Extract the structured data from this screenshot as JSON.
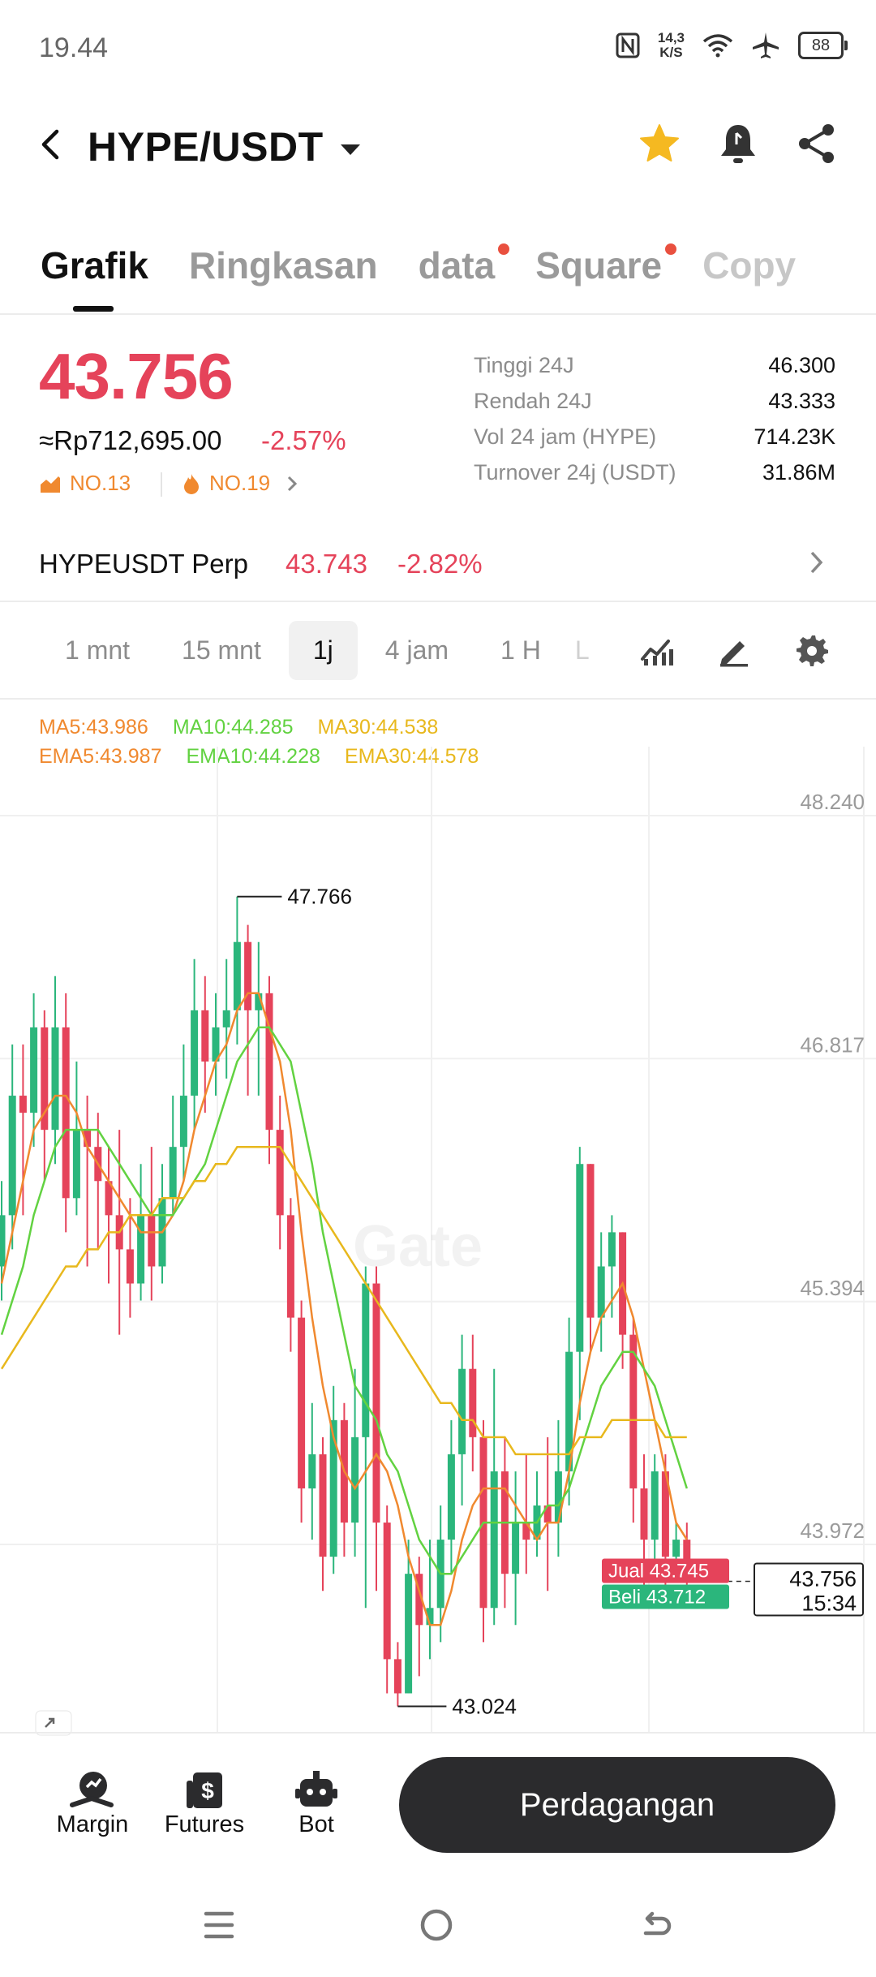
{
  "status": {
    "time": "19.44",
    "speed_value": "14,3",
    "speed_unit": "K/S",
    "battery": "88"
  },
  "header": {
    "pair": "HYPE/USDT"
  },
  "tabs": [
    {
      "label": "Grafik",
      "active": true,
      "dot": false
    },
    {
      "label": "Ringkasan",
      "active": false,
      "dot": false
    },
    {
      "label": "data",
      "active": false,
      "dot": true
    },
    {
      "label": "Square",
      "active": false,
      "dot": true
    },
    {
      "label": "Copy",
      "active": false,
      "dot": false
    }
  ],
  "price": {
    "last": "43.756",
    "fiat": "≈Rp712,695.00",
    "change": "-2.57%",
    "rank_gain": "NO.13",
    "rank_hot": "NO.19"
  },
  "stats": [
    {
      "label": "Tinggi 24J",
      "value": "46.300"
    },
    {
      "label": "Rendah 24J",
      "value": "43.333"
    },
    {
      "label": "Vol 24 jam (HYPE)",
      "value": "714.23K"
    },
    {
      "label": "Turnover 24j (USDT)",
      "value": "31.86M"
    }
  ],
  "perp": {
    "name": "HYPEUSDT Perp",
    "price": "43.743",
    "change": "-2.82%"
  },
  "intervals": [
    {
      "label": "1 mnt",
      "active": false
    },
    {
      "label": "15 mnt",
      "active": false
    },
    {
      "label": "1j",
      "active": true
    },
    {
      "label": "4 jam",
      "active": false
    },
    {
      "label": "1 H",
      "active": false
    },
    {
      "label": "L",
      "active": false
    }
  ],
  "indicators": {
    "ma": [
      {
        "label": "MA5:43.986",
        "color": "#f0892f"
      },
      {
        "label": "MA10:44.285",
        "color": "#62d241"
      },
      {
        "label": "MA30:44.538",
        "color": "#e8b81d"
      }
    ],
    "ema": [
      {
        "label": "EMA5:43.987",
        "color": "#f0892f"
      },
      {
        "label": "EMA10:44.228",
        "color": "#62d241"
      },
      {
        "label": "EMA30:44.578",
        "color": "#e8b81d"
      }
    ]
  },
  "chart_data": {
    "type": "candlestick",
    "y_ticks": [
      "48.240",
      "46.817",
      "45.394",
      "43.972"
    ],
    "y_tick_values": [
      48.24,
      46.817,
      45.394,
      43.972
    ],
    "high_label": "47.766",
    "low_label": "43.024",
    "high_value": 47.766,
    "low_value": 43.024,
    "watermark": "Gate",
    "sell_label": "Jual",
    "sell_price": "43.745",
    "buy_label": "Beli",
    "buy_price": "43.712",
    "current_price": "43.756",
    "current_value": 43.756,
    "countdown": "15:34",
    "up_color": "#2bb67c",
    "down_color": "#e5435a",
    "candles": [
      [
        45.6,
        45.9,
        46.1,
        45.4
      ],
      [
        45.9,
        46.6,
        46.9,
        45.7
      ],
      [
        46.6,
        46.5,
        46.9,
        45.9
      ],
      [
        46.5,
        47.0,
        47.2,
        46.3
      ],
      [
        47.0,
        46.4,
        47.1,
        46.1
      ],
      [
        46.4,
        47.0,
        47.3,
        46.2
      ],
      [
        47.0,
        46.0,
        47.2,
        45.8
      ],
      [
        46.0,
        46.4,
        46.8,
        45.9
      ],
      [
        46.4,
        46.3,
        46.6,
        45.6
      ],
      [
        46.3,
        46.1,
        46.5,
        45.7
      ],
      [
        46.1,
        45.9,
        46.3,
        45.5
      ],
      [
        45.9,
        45.7,
        46.4,
        45.2
      ],
      [
        45.7,
        45.5,
        46.0,
        45.3
      ],
      [
        45.5,
        45.9,
        46.2,
        45.4
      ],
      [
        45.9,
        45.6,
        46.3,
        45.4
      ],
      [
        45.6,
        46.0,
        46.2,
        45.5
      ],
      [
        46.0,
        46.3,
        46.6,
        45.9
      ],
      [
        46.3,
        46.6,
        46.9,
        46.1
      ],
      [
        46.6,
        47.1,
        47.4,
        46.4
      ],
      [
        47.1,
        46.8,
        47.3,
        46.5
      ],
      [
        46.8,
        47.0,
        47.2,
        46.6
      ],
      [
        47.0,
        47.1,
        47.4,
        46.7
      ],
      [
        47.1,
        47.5,
        47.766,
        46.9
      ],
      [
        47.5,
        47.1,
        47.6,
        46.6
      ],
      [
        47.1,
        47.2,
        47.5,
        46.6
      ],
      [
        47.2,
        46.4,
        47.3,
        46.2
      ],
      [
        46.4,
        45.9,
        46.6,
        45.7
      ],
      [
        45.9,
        45.3,
        46.0,
        45.1
      ],
      [
        45.3,
        44.3,
        45.4,
        44.1
      ],
      [
        44.3,
        44.5,
        44.8,
        44.0
      ],
      [
        44.5,
        43.9,
        44.6,
        43.7
      ],
      [
        43.9,
        44.7,
        44.9,
        43.8
      ],
      [
        44.7,
        44.1,
        44.8,
        43.9
      ],
      [
        44.1,
        44.6,
        45.0,
        43.9
      ],
      [
        44.6,
        45.5,
        45.6,
        43.6
      ],
      [
        45.5,
        44.1,
        45.6,
        43.7
      ],
      [
        44.1,
        43.3,
        44.2,
        43.1
      ],
      [
        43.3,
        43.1,
        43.4,
        43.024
      ],
      [
        43.1,
        43.8,
        44.0,
        43.1
      ],
      [
        43.8,
        43.5,
        43.9,
        43.2
      ],
      [
        43.5,
        43.6,
        44.0,
        43.3
      ],
      [
        43.6,
        44.0,
        44.2,
        43.4
      ],
      [
        44.0,
        44.5,
        44.7,
        43.8
      ],
      [
        44.5,
        45.0,
        45.2,
        44.2
      ],
      [
        45.0,
        44.6,
        45.2,
        44.4
      ],
      [
        44.6,
        43.6,
        44.7,
        43.4
      ],
      [
        43.6,
        44.4,
        45.0,
        43.5
      ],
      [
        44.4,
        43.8,
        44.6,
        43.6
      ],
      [
        43.8,
        44.1,
        44.4,
        43.5
      ],
      [
        44.1,
        44.0,
        44.5,
        43.8
      ],
      [
        44.0,
        44.2,
        44.4,
        43.9
      ],
      [
        44.2,
        44.1,
        44.6,
        43.7
      ],
      [
        44.1,
        44.4,
        44.7,
        43.9
      ],
      [
        44.4,
        45.1,
        45.3,
        44.2
      ],
      [
        45.1,
        46.2,
        46.3,
        44.7
      ],
      [
        46.2,
        45.3,
        46.2,
        45.1
      ],
      [
        45.3,
        45.6,
        45.8,
        45.1
      ],
      [
        45.6,
        45.8,
        45.9,
        45.3
      ],
      [
        45.8,
        45.2,
        45.8,
        45.0
      ],
      [
        45.2,
        44.3,
        45.3,
        44.1
      ],
      [
        44.3,
        44.0,
        44.5,
        43.7
      ],
      [
        44.0,
        44.4,
        44.5,
        43.8
      ],
      [
        44.4,
        43.9,
        44.5,
        43.7
      ],
      [
        43.9,
        44.0,
        44.1,
        43.8
      ],
      [
        44.0,
        43.8,
        44.1,
        43.7
      ]
    ],
    "ma_lines": [
      {
        "name": "MA5",
        "color": "#f0892f",
        "values": [
          45.5,
          45.8,
          46.1,
          46.4,
          46.5,
          46.6,
          46.6,
          46.5,
          46.3,
          46.2,
          46.1,
          46.0,
          45.9,
          45.8,
          45.8,
          45.8,
          45.9,
          46.1,
          46.4,
          46.6,
          46.8,
          46.9,
          47.1,
          47.2,
          47.2,
          47.0,
          46.8,
          46.4,
          45.8,
          45.3,
          44.9,
          44.6,
          44.4,
          44.3,
          44.4,
          44.5,
          44.4,
          44.2,
          43.9,
          43.7,
          43.5,
          43.5,
          43.7,
          44.0,
          44.2,
          44.3,
          44.3,
          44.3,
          44.2,
          44.1,
          44.0,
          44.1,
          44.1,
          44.4,
          44.8,
          45.1,
          45.3,
          45.4,
          45.5,
          45.3,
          45.0,
          44.7,
          44.4,
          44.1,
          44.0
        ]
      },
      {
        "name": "MA10",
        "color": "#62d241",
        "values": [
          45.2,
          45.4,
          45.6,
          45.9,
          46.1,
          46.3,
          46.4,
          46.4,
          46.4,
          46.4,
          46.3,
          46.2,
          46.1,
          46.0,
          45.9,
          45.9,
          45.9,
          46.0,
          46.1,
          46.2,
          46.4,
          46.6,
          46.8,
          46.9,
          47.0,
          47.0,
          46.9,
          46.8,
          46.5,
          46.2,
          45.8,
          45.5,
          45.2,
          44.9,
          44.8,
          44.7,
          44.5,
          44.4,
          44.2,
          44.0,
          43.9,
          43.8,
          43.8,
          43.9,
          44.0,
          44.1,
          44.1,
          44.1,
          44.1,
          44.1,
          44.1,
          44.2,
          44.2,
          44.3,
          44.5,
          44.7,
          44.9,
          45.0,
          45.1,
          45.1,
          45.0,
          44.9,
          44.7,
          44.5,
          44.3
        ]
      },
      {
        "name": "MA30",
        "color": "#e8b81d",
        "values": [
          45.0,
          45.1,
          45.2,
          45.3,
          45.4,
          45.5,
          45.6,
          45.6,
          45.7,
          45.7,
          45.8,
          45.8,
          45.9,
          45.9,
          45.9,
          46.0,
          46.0,
          46.0,
          46.1,
          46.1,
          46.2,
          46.2,
          46.3,
          46.3,
          46.3,
          46.3,
          46.3,
          46.2,
          46.1,
          46.0,
          45.9,
          45.8,
          45.7,
          45.6,
          45.5,
          45.4,
          45.3,
          45.2,
          45.1,
          45.0,
          44.9,
          44.8,
          44.8,
          44.7,
          44.7,
          44.6,
          44.6,
          44.6,
          44.5,
          44.5,
          44.5,
          44.5,
          44.5,
          44.5,
          44.6,
          44.6,
          44.6,
          44.7,
          44.7,
          44.7,
          44.7,
          44.7,
          44.6,
          44.6,
          44.6
        ]
      }
    ]
  },
  "bottom_nav": [
    {
      "label": "Margin",
      "icon": "margin-icon"
    },
    {
      "label": "Futures",
      "icon": "futures-icon"
    },
    {
      "label": "Bot",
      "icon": "bot-icon"
    }
  ],
  "trade_button": "Perdagangan"
}
